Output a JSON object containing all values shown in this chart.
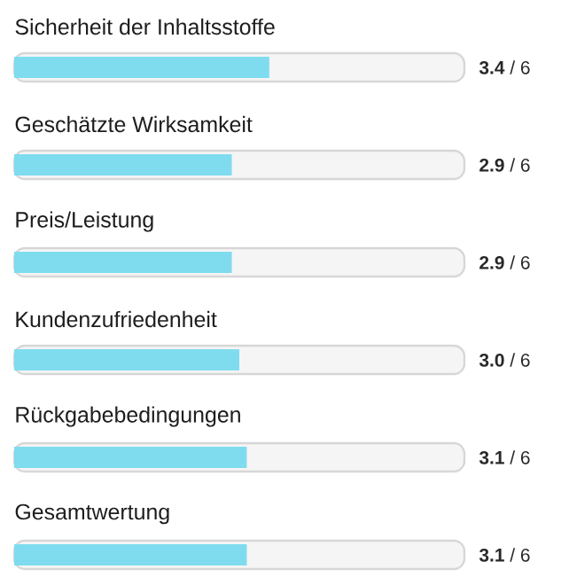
{
  "chart_data": {
    "type": "bar",
    "orientation": "horizontal",
    "categories": [
      "Sicherheit der Inhaltsstoffe",
      "Geschätzte Wirksamkeit",
      "Preis/Leistung",
      "Kundenzufriedenheit",
      "Rückgabebedingungen",
      "Gesamtwertung"
    ],
    "values": [
      3.4,
      2.9,
      2.9,
      3.0,
      3.1,
      3.1
    ],
    "value_labels": [
      "**3.4** / 6",
      "**2.9** / 6",
      "**2.9** / 6",
      "**3.0** / 6",
      "**3.1** / 6",
      "**3.1** / 6"
    ],
    "color": "#7fdcef",
    "xlim": [
      0,
      6
    ]
  }
}
